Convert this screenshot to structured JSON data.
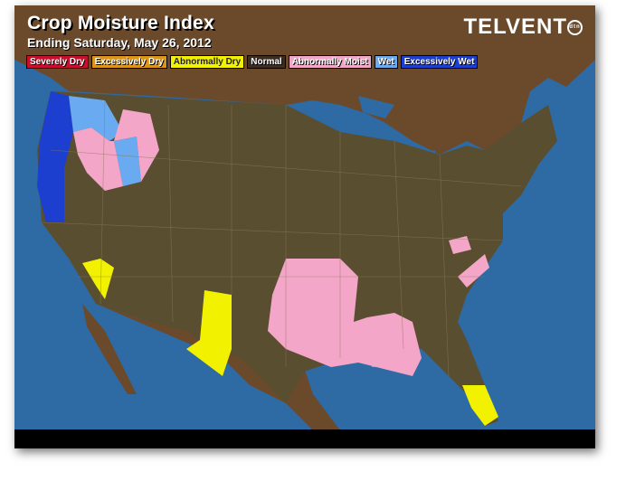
{
  "header": {
    "title": "Crop Moisture Index",
    "subtitle": "Ending Saturday, May 26, 2012",
    "logo": "TELVENT",
    "logo_badge": "dtn"
  },
  "legend": [
    {
      "label": "Severely Dry",
      "color": "#c8102e"
    },
    {
      "label": "Excessively Dry",
      "color": "#d9961a"
    },
    {
      "label": "Abnormally Dry",
      "color": "#f2f200"
    },
    {
      "label": "Normal",
      "color": "#5a4e30"
    },
    {
      "label": "Abnormally Moist",
      "color": "#f4a6c8"
    },
    {
      "label": "Wet",
      "color": "#6aaaf0"
    },
    {
      "label": "Excessively Wet",
      "color": "#1c3fd0"
    }
  ],
  "colors": {
    "ocean": "#2e6aa3",
    "land": "#6b4a2c",
    "us_normal": "#5a4e30"
  }
}
